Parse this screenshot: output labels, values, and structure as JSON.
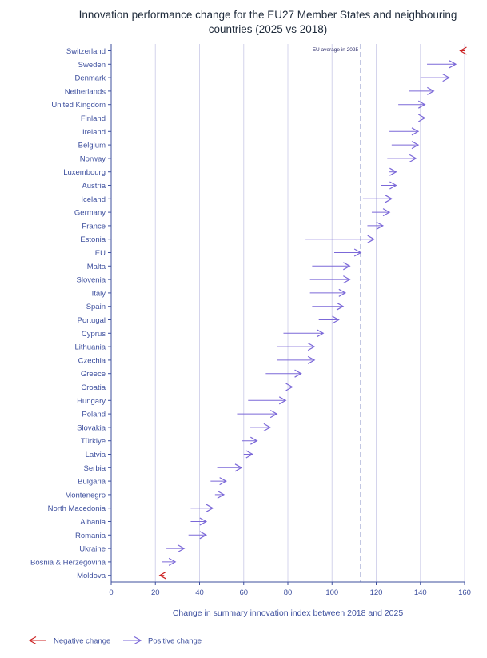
{
  "chart_data": {
    "type": "arrow",
    "title": "Innovation performance change for the EU27 Member States and neighbouring countries (2025 vs 2018)",
    "xlabel": "Change in summary innovation index between 2018 and 2025",
    "xlim": [
      0,
      160
    ],
    "xticks": [
      "0",
      "20",
      "40",
      "60",
      "80",
      "100",
      "120",
      "140",
      "160"
    ],
    "reference_line": {
      "label": "EU average in 2025",
      "value": 113
    },
    "legend": {
      "negative": "Negative change",
      "positive": "Positive change"
    },
    "colors": {
      "negative": "#cc2222",
      "positive": "#7b68d8",
      "axis": "#3d4f9e",
      "grid": "#d4d4ec"
    },
    "series": [
      {
        "category": "Switzerland",
        "start": 161,
        "end": 158
      },
      {
        "category": "Sweden",
        "start": 143,
        "end": 156
      },
      {
        "category": "Denmark",
        "start": 140,
        "end": 153
      },
      {
        "category": "Netherlands",
        "start": 135,
        "end": 146
      },
      {
        "category": "United Kingdom",
        "start": 130,
        "end": 142
      },
      {
        "category": "Finland",
        "start": 134,
        "end": 142
      },
      {
        "category": "Ireland",
        "start": 126,
        "end": 139
      },
      {
        "category": "Belgium",
        "start": 127,
        "end": 139
      },
      {
        "category": "Norway",
        "start": 125,
        "end": 138
      },
      {
        "category": "Luxembourg",
        "start": 126,
        "end": 129
      },
      {
        "category": "Austria",
        "start": 122,
        "end": 129
      },
      {
        "category": "Iceland",
        "start": 114,
        "end": 127
      },
      {
        "category": "Germany",
        "start": 118,
        "end": 126
      },
      {
        "category": "France",
        "start": 116,
        "end": 123
      },
      {
        "category": "Estonia",
        "start": 88,
        "end": 119
      },
      {
        "category": "EU",
        "start": 101,
        "end": 113
      },
      {
        "category": "Malta",
        "start": 91,
        "end": 108
      },
      {
        "category": "Slovenia",
        "start": 90,
        "end": 108
      },
      {
        "category": "Italy",
        "start": 90,
        "end": 106
      },
      {
        "category": "Spain",
        "start": 91,
        "end": 105
      },
      {
        "category": "Portugal",
        "start": 94,
        "end": 103
      },
      {
        "category": "Cyprus",
        "start": 78,
        "end": 96
      },
      {
        "category": "Lithuania",
        "start": 75,
        "end": 92
      },
      {
        "category": "Czechia",
        "start": 75,
        "end": 92
      },
      {
        "category": "Greece",
        "start": 70,
        "end": 86
      },
      {
        "category": "Croatia",
        "start": 62,
        "end": 82
      },
      {
        "category": "Hungary",
        "start": 62,
        "end": 79
      },
      {
        "category": "Poland",
        "start": 57,
        "end": 75
      },
      {
        "category": "Slovakia",
        "start": 63,
        "end": 72
      },
      {
        "category": "Türkiye",
        "start": 59,
        "end": 66
      },
      {
        "category": "Latvia",
        "start": 60,
        "end": 64
      },
      {
        "category": "Serbia",
        "start": 48,
        "end": 59
      },
      {
        "category": "Bulgaria",
        "start": 45,
        "end": 52
      },
      {
        "category": "Montenegro",
        "start": 47,
        "end": 51
      },
      {
        "category": "North Macedonia",
        "start": 36,
        "end": 46
      },
      {
        "category": "Albania",
        "start": 36,
        "end": 43
      },
      {
        "category": "Romania",
        "start": 35,
        "end": 43
      },
      {
        "category": "Ukraine",
        "start": 25,
        "end": 33
      },
      {
        "category": "Bosnia & Herzegovina",
        "start": 23,
        "end": 29
      },
      {
        "category": "Moldova",
        "start": 24,
        "end": 22
      }
    ]
  }
}
